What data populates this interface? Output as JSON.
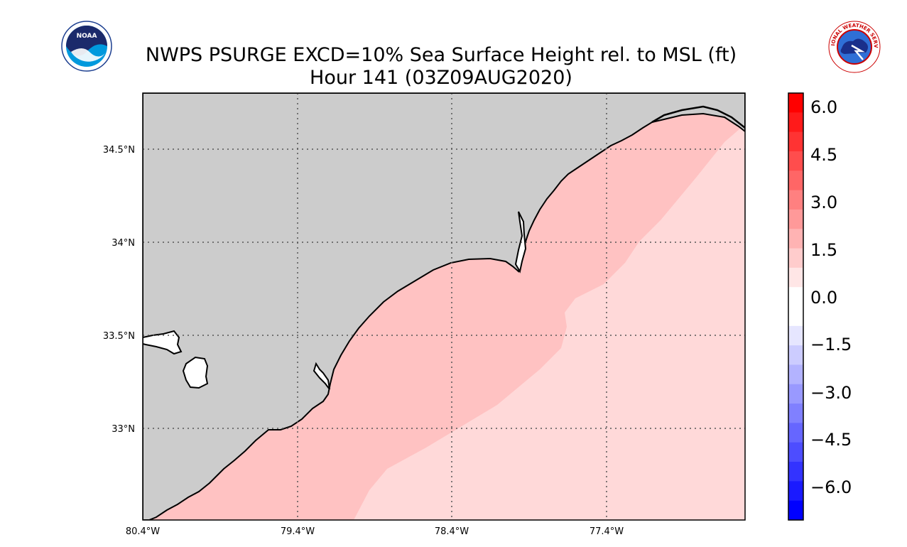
{
  "title": {
    "line1": "NWPS PSURGE EXCD=10% Sea Surface Height rel. to MSL (ft)",
    "line2": "Hour 141 (03Z09AUG2020)"
  },
  "logos": {
    "left": {
      "icon": "noaa-logo",
      "text": "NOAA"
    },
    "right": {
      "icon": "nws-logo",
      "text": "NATIONAL WEATHER SERVICE"
    }
  },
  "map": {
    "lon_ticks": [
      "80.4°W",
      "79.4°W",
      "78.4°W",
      "77.4°W"
    ],
    "lat_ticks": [
      "34.5°N",
      "34°N",
      "33.5°N",
      "33°N"
    ],
    "lon_range": [
      -80.4,
      -76.5
    ],
    "lat_range": [
      32.5,
      34.8
    ],
    "land_color": "#cccccc",
    "surge_near_color": "#ffc2c2",
    "surge_far_color": "#ffd9d9"
  },
  "colorbar": {
    "labels": [
      "6.0",
      "4.5",
      "3.0",
      "1.5",
      "0.0",
      "−1.5",
      "−3.0",
      "−4.5",
      "−6.0"
    ],
    "range": [
      -6.75,
      6.75
    ],
    "colors": [
      "#ff0000",
      "#ff1a1a",
      "#ff3333",
      "#ff4d4d",
      "#ff6666",
      "#ff8080",
      "#ff9999",
      "#ffb3b3",
      "#ffcccc",
      "#ffe6e6",
      "#ffffff",
      "#ffffff",
      "#e6e6ff",
      "#ccccff",
      "#b3b3ff",
      "#9999ff",
      "#8080ff",
      "#6666ff",
      "#4d4dff",
      "#3333ff",
      "#1a1aff",
      "#0000ff"
    ]
  }
}
